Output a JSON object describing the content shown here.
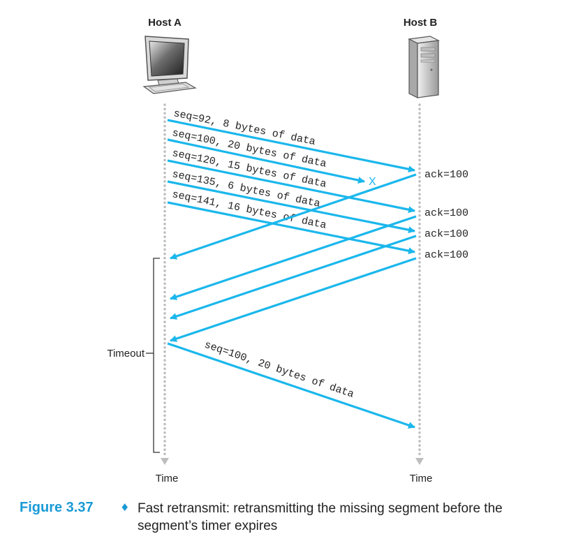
{
  "hosts": {
    "a_label": "Host A",
    "b_label": "Host B"
  },
  "time_labels": {
    "a": "Time",
    "b": "Time"
  },
  "timeout_label": "Timeout",
  "segments": [
    {
      "label": "seq=92, 8 bytes of data",
      "lost": false
    },
    {
      "label": "seq=100, 20 bytes of data",
      "lost": true
    },
    {
      "label": "seq=120, 15 bytes of data",
      "lost": false
    },
    {
      "label": "seq=135, 6 bytes of data",
      "lost": false
    },
    {
      "label": "seq=141, 16 bytes of data",
      "lost": false
    }
  ],
  "lost_marker": "X",
  "acks": [
    {
      "label": "ack=100"
    },
    {
      "label": "ack=100"
    },
    {
      "label": "ack=100"
    },
    {
      "label": "ack=100"
    }
  ],
  "retransmission": {
    "label": "seq=100, 20 bytes of data"
  },
  "caption": {
    "figure_number": "Figure 3.37",
    "bullet": "♦",
    "text": "Fast retransmit: retransmitting the missing segment before the segment’s timer expires"
  },
  "colors": {
    "arrow": "#1bb7ec",
    "figure_number": "#1a9ad6"
  }
}
